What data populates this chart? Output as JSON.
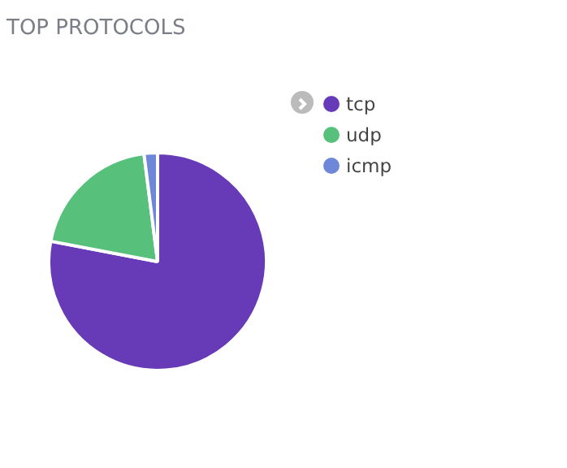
{
  "chart_data": {
    "type": "pie",
    "title": "TOP PROTOCOLS",
    "categories": [
      "tcp",
      "udp",
      "icmp"
    ],
    "values": [
      78,
      20,
      2
    ],
    "colors": [
      "#673ab7",
      "#57c17b",
      "#6f87d8"
    ],
    "legend": "top right"
  }
}
